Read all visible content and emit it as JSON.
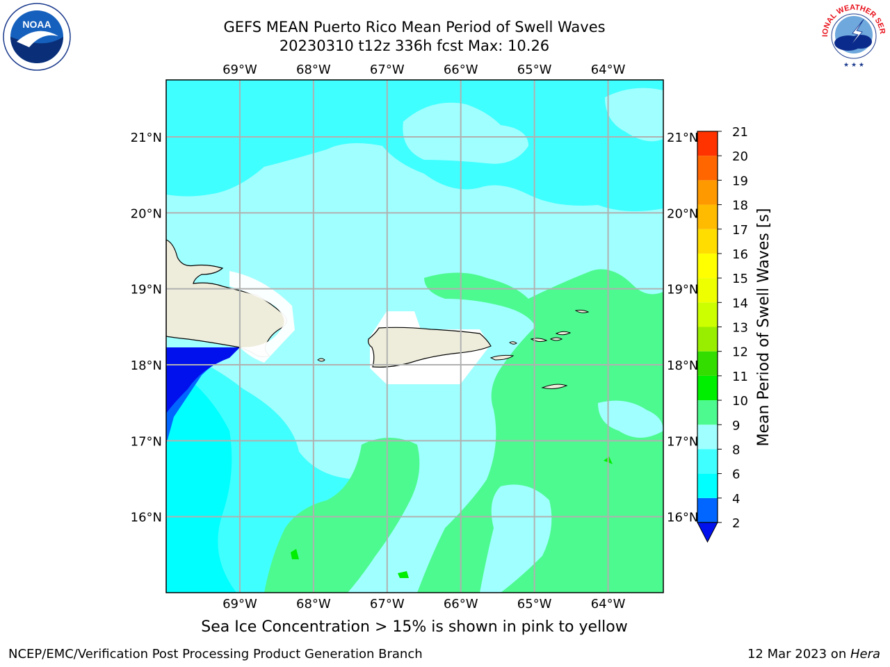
{
  "title": {
    "line1": "GEFS MEAN Puerto Rico Mean Period of Swell Waves",
    "line2": "20230310 t12z 336h fcst   Max: 10.26"
  },
  "map": {
    "lon_labels": [
      "69°W",
      "68°W",
      "67°W",
      "66°W",
      "65°W",
      "64°W"
    ],
    "lat_labels": [
      "21°N",
      "20°N",
      "19°N",
      "18°N",
      "17°N",
      "16°N"
    ],
    "lon_range": [
      -70.0,
      -63.25
    ],
    "lat_range": [
      15.0,
      21.75
    ],
    "grid_lons": [
      -69,
      -68,
      -67,
      -66,
      -65,
      -64
    ],
    "grid_lats": [
      21,
      20,
      19,
      18,
      17,
      16
    ],
    "colors": {
      "land": "#eeeddc",
      "gridline": "#b0b0b0",
      "c2_4": "#0066ff",
      "c4_6": "#00ffff",
      "c6_8": "#40ffff",
      "c8_9": "#a0ffff",
      "c9_10": "#4dfa90",
      "c10_11": "#00ee00",
      "below": "#0011ee"
    }
  },
  "colorbar": {
    "label": "Mean Period of Swell Waves [s]",
    "ticks": [
      "2",
      "4",
      "6",
      "8",
      "9",
      "10",
      "11",
      "12",
      "13",
      "14",
      "15",
      "16",
      "17",
      "18",
      "19",
      "20",
      "21"
    ],
    "colors": [
      "#0066ff",
      "#00ffff",
      "#40ffff",
      "#a0ffff",
      "#4dfa90",
      "#00ee00",
      "#33dd00",
      "#99ee00",
      "#ccff00",
      "#eeff00",
      "#ffff00",
      "#ffdd00",
      "#ffbb00",
      "#ff9900",
      "#ff6600",
      "#ff3300",
      "#ff0000"
    ],
    "extend_color": "#0011ee"
  },
  "note": "Sea Ice Concentration > 15% is shown in pink to yellow",
  "footer": {
    "left": "NCEP/EMC/Verification Post Processing Product Generation Branch",
    "right_date": "12 Mar 2023 on ",
    "right_host": "Hera"
  },
  "logos": {
    "noaa_text": "NOAA",
    "nws_text": "NATIONAL WEATHER SERVICE"
  }
}
